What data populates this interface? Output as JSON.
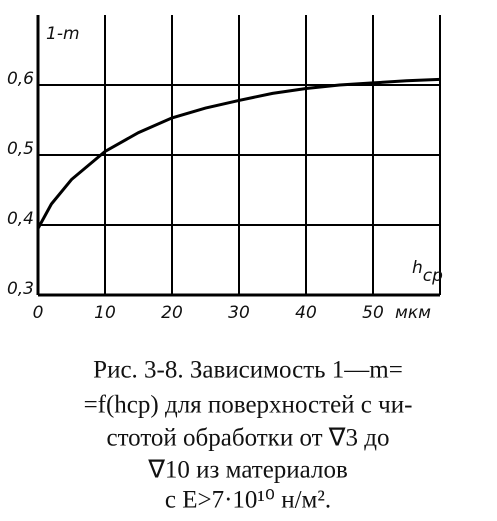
{
  "chart_data": {
    "type": "line",
    "y_label": "1-m",
    "x_label": {
      "symbol": "h",
      "subscript": "ср"
    },
    "x_unit": "мкм",
    "x": [
      0,
      2,
      5,
      10,
      15,
      20,
      25,
      30,
      35,
      40,
      45,
      50,
      55,
      60
    ],
    "series": [
      {
        "name": "1-m",
        "color": "#000000",
        "values": [
          0.395,
          0.43,
          0.465,
          0.505,
          0.532,
          0.553,
          0.567,
          0.578,
          0.588,
          0.595,
          0.6,
          0.603,
          0.606,
          0.608
        ]
      }
    ],
    "xlim": [
      0,
      60
    ],
    "ylim": [
      0.3,
      0.7
    ],
    "xticks": [
      0,
      10,
      20,
      30,
      40,
      50
    ],
    "yticks": [
      {
        "value": 0.3,
        "label": "0,3"
      },
      {
        "value": 0.4,
        "label": "0,4"
      },
      {
        "value": 0.5,
        "label": "0,5"
      },
      {
        "value": 0.6,
        "label": "0,6"
      }
    ],
    "grid": true,
    "caption": [
      "Рис. 3-8. Зависимость 1—m=",
      "=f(hср) для поверхностей с чи-",
      "стотой обработки от ∇3 до",
      "∇10 из материалов",
      "с E>7·10¹⁰ н/м²."
    ]
  }
}
